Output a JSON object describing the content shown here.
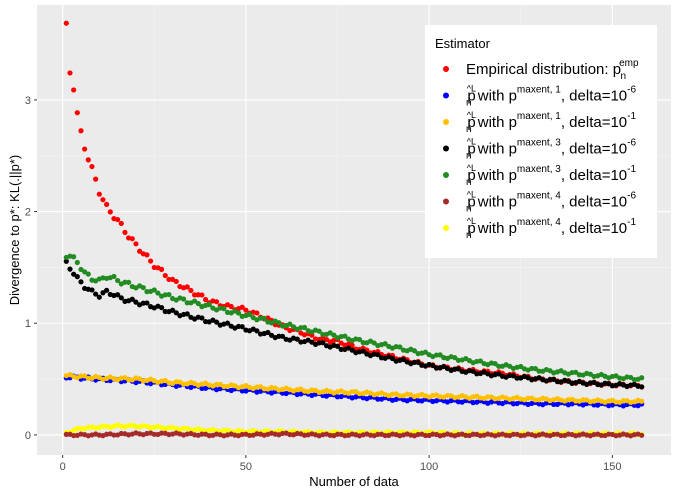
{
  "chart_data": {
    "type": "scatter",
    "title": "",
    "xlabel": "Number of data",
    "ylabel": "Divergence to p*: KL(.||p*)",
    "xlim": [
      -7,
      166
    ],
    "ylim": [
      -0.18,
      3.85
    ],
    "xticks": [
      0,
      50,
      100,
      150
    ],
    "yticks": [
      0,
      1,
      2,
      3
    ],
    "grid": true,
    "legend": {
      "title": "Estimator",
      "position": "top-right",
      "entries": [
        {
          "main": "Empirical distribution: p",
          "sub": "n",
          "sup": "emp",
          "tail": "",
          "tail_sup": ""
        },
        {
          "main": "p",
          "sub": "n",
          "sup": "^L",
          "tail": " with p",
          "tail_sup": "maxent, 1",
          "tail2": ", delta=10",
          "tail2_sup": "-6"
        },
        {
          "main": "p",
          "sub": "n",
          "sup": "^L",
          "tail": " with p",
          "tail_sup": "maxent, 1",
          "tail2": ", delta=10",
          "tail2_sup": "-1"
        },
        {
          "main": "p",
          "sub": "n",
          "sup": "^L",
          "tail": " with p",
          "tail_sup": "maxent, 3",
          "tail2": ", delta=10",
          "tail2_sup": "-6"
        },
        {
          "main": "p",
          "sub": "n",
          "sup": "^L",
          "tail": " with p",
          "tail_sup": "maxent, 3",
          "tail2": ", delta=10",
          "tail2_sup": "-1"
        },
        {
          "main": "p",
          "sub": "n",
          "sup": "^L",
          "tail": " with p",
          "tail_sup": "maxent, 4",
          "tail2": ", delta=10",
          "tail2_sup": "-6"
        },
        {
          "main": "p",
          "sub": "n",
          "sup": "^L",
          "tail": " with p",
          "tail_sup": "maxent, 4",
          "tail2": ", delta=10",
          "tail2_sup": "-1"
        }
      ]
    },
    "series": [
      {
        "name": "Empirical distribution: p_n^emp",
        "color": "#ff0000",
        "x": [
          1,
          2,
          3,
          4,
          5,
          6,
          8,
          10,
          12,
          15,
          18,
          20,
          25,
          30,
          35,
          40,
          45,
          50,
          55,
          60,
          65,
          70,
          75,
          80,
          90,
          100,
          110,
          120,
          130,
          140,
          150,
          158
        ],
        "y": [
          3.65,
          3.25,
          3.12,
          2.87,
          2.7,
          2.58,
          2.38,
          2.18,
          2.04,
          1.92,
          1.78,
          1.7,
          1.52,
          1.38,
          1.29,
          1.2,
          1.15,
          1.12,
          1.05,
          0.97,
          0.92,
          0.86,
          0.84,
          0.78,
          0.7,
          0.62,
          0.58,
          0.55,
          0.5,
          0.47,
          0.45,
          0.44
        ]
      },
      {
        "name": "p_n^L with p^maxent,1, delta=10^-6",
        "color": "#0000ff",
        "x": [
          1,
          10,
          20,
          30,
          40,
          50,
          60,
          70,
          80,
          90,
          100,
          110,
          120,
          130,
          140,
          150,
          158
        ],
        "y": [
          0.52,
          0.5,
          0.48,
          0.45,
          0.42,
          0.4,
          0.38,
          0.36,
          0.34,
          0.32,
          0.31,
          0.3,
          0.29,
          0.28,
          0.28,
          0.27,
          0.27
        ]
      },
      {
        "name": "p_n^L with p^maxent,1, delta=10^-1",
        "color": "#ffc000",
        "x": [
          1,
          10,
          20,
          30,
          40,
          50,
          60,
          70,
          80,
          90,
          100,
          110,
          120,
          130,
          140,
          150,
          158
        ],
        "y": [
          0.53,
          0.51,
          0.5,
          0.47,
          0.45,
          0.43,
          0.41,
          0.39,
          0.38,
          0.36,
          0.35,
          0.34,
          0.33,
          0.32,
          0.31,
          0.3,
          0.3
        ]
      },
      {
        "name": "p_n^L with p^maxent,3, delta=10^-6",
        "color": "#000000",
        "x": [
          1,
          2,
          4,
          6,
          8,
          10,
          12,
          14,
          16,
          20,
          25,
          30,
          40,
          50,
          60,
          70,
          80,
          90,
          100,
          110,
          120,
          130,
          140,
          150,
          158
        ],
        "y": [
          1.54,
          1.5,
          1.4,
          1.33,
          1.28,
          1.25,
          1.28,
          1.26,
          1.22,
          1.19,
          1.15,
          1.1,
          1.02,
          0.95,
          0.87,
          0.82,
          0.75,
          0.68,
          0.62,
          0.57,
          0.53,
          0.5,
          0.47,
          0.45,
          0.44
        ]
      },
      {
        "name": "p_n^L with p^maxent,3, delta=10^-1",
        "color": "#228b22",
        "x": [
          1,
          2,
          4,
          6,
          8,
          10,
          12,
          14,
          16,
          20,
          25,
          30,
          40,
          50,
          60,
          70,
          80,
          90,
          100,
          110,
          120,
          130,
          140,
          150,
          158
        ],
        "y": [
          1.61,
          1.6,
          1.55,
          1.45,
          1.4,
          1.38,
          1.42,
          1.4,
          1.37,
          1.33,
          1.28,
          1.23,
          1.15,
          1.07,
          0.99,
          0.92,
          0.85,
          0.79,
          0.72,
          0.67,
          0.62,
          0.58,
          0.55,
          0.52,
          0.5
        ]
      },
      {
        "name": "p_n^L with p^maxent,4, delta=10^-6",
        "color": "#a52a2a",
        "x": [
          1,
          10,
          20,
          30,
          40,
          50,
          60,
          70,
          80,
          90,
          100,
          110,
          120,
          130,
          140,
          150,
          158
        ],
        "y": [
          0.0,
          0.0,
          0.01,
          0.01,
          0.0,
          0.0,
          0.01,
          0.0,
          0.0,
          0.0,
          0.0,
          0.0,
          0.0,
          0.0,
          0.0,
          0.0,
          0.0
        ]
      },
      {
        "name": "p_n^L with p^maxent,4, delta=10^-1",
        "color": "#ffff00",
        "x": [
          1,
          5,
          10,
          15,
          20,
          25,
          30,
          35,
          40,
          50,
          60,
          70,
          80,
          90,
          100,
          110,
          120,
          130,
          140,
          150,
          158
        ],
        "y": [
          0.02,
          0.06,
          0.07,
          0.08,
          0.08,
          0.07,
          0.06,
          0.05,
          0.04,
          0.03,
          0.03,
          0.02,
          0.02,
          0.02,
          0.02,
          0.01,
          0.01,
          0.01,
          0.01,
          0.01,
          0.01
        ]
      }
    ]
  }
}
